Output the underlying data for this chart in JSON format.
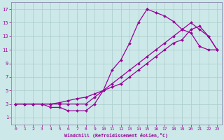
{
  "xlabel": "Windchill (Refroidissement éolien,°C)",
  "bg_color": "#cce8e8",
  "grid_color": "#aacccc",
  "line_color": "#990099",
  "xlim_min": -0.5,
  "xlim_max": 23.5,
  "ylim_min": 0.0,
  "ylim_max": 18.0,
  "xticks": [
    0,
    1,
    2,
    3,
    4,
    5,
    6,
    7,
    8,
    9,
    10,
    11,
    12,
    13,
    14,
    15,
    16,
    17,
    18,
    19,
    20,
    21,
    22,
    23
  ],
  "yticks": [
    1,
    3,
    5,
    7,
    9,
    11,
    13,
    15,
    17
  ],
  "curve1_x": [
    0,
    1,
    2,
    3,
    4,
    5,
    6,
    7,
    8,
    9,
    10,
    11,
    12,
    13,
    14,
    15,
    15,
    16,
    17,
    18,
    19,
    20,
    21,
    22,
    23
  ],
  "curve1_y": [
    3,
    3,
    3,
    3,
    2.5,
    2.5,
    2,
    2,
    2,
    3,
    5,
    8,
    9.5,
    12,
    15,
    17,
    17,
    16.5,
    16,
    15.2,
    14,
    13.5,
    11.5,
    11,
    11
  ],
  "curve2_x": [
    0,
    1,
    2,
    3,
    4,
    5,
    6,
    7,
    8,
    9,
    10,
    11,
    12,
    13,
    14,
    15,
    16,
    17,
    18,
    19,
    20,
    21,
    22,
    23
  ],
  "curve2_y": [
    3,
    3,
    3,
    3,
    3,
    3.2,
    3.5,
    3.8,
    4,
    4.5,
    5,
    5.5,
    6,
    7,
    8,
    9,
    10,
    11,
    12,
    12.5,
    14,
    14.5,
    13,
    11
  ],
  "curve3_x": [
    0,
    1,
    2,
    3,
    4,
    5,
    6,
    7,
    8,
    9,
    10,
    11,
    12,
    13,
    14,
    15,
    16,
    17,
    18,
    19,
    20,
    21,
    22,
    23
  ],
  "curve3_y": [
    3,
    3,
    3,
    3,
    3,
    3,
    3,
    3,
    3,
    4,
    5,
    6,
    7,
    8,
    9,
    10,
    11,
    12,
    13,
    14,
    15,
    14,
    13,
    11
  ]
}
